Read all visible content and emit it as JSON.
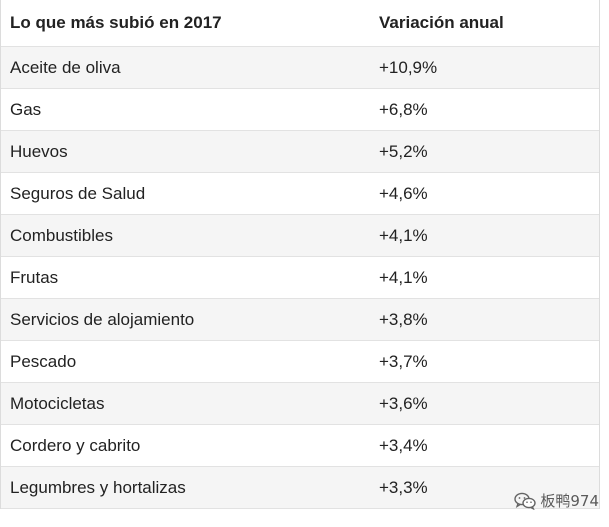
{
  "table": {
    "headers": {
      "item": "Lo que más subió en 2017",
      "change": "Variación anual"
    },
    "rows": [
      {
        "item": "Aceite de oliva",
        "change": "+10,9%"
      },
      {
        "item": "Gas",
        "change": "+6,8%"
      },
      {
        "item": "Huevos",
        "change": "+5,2%"
      },
      {
        "item": "Seguros de Salud",
        "change": "+4,6%"
      },
      {
        "item": "Combustibles",
        "change": "+4,1%"
      },
      {
        "item": "Frutas",
        "change": "+4,1%"
      },
      {
        "item": "Servicios de alojamiento",
        "change": "+3,8%"
      },
      {
        "item": "Pescado",
        "change": "+3,7%"
      },
      {
        "item": "Motocicletas",
        "change": "+3,6%"
      },
      {
        "item": "Cordero y cabrito",
        "change": "+3,4%"
      },
      {
        "item": "Legumbres y hortalizas",
        "change": "+3,3%"
      }
    ]
  },
  "watermark": {
    "icon": "wechat-icon",
    "text": "板鸭974"
  }
}
